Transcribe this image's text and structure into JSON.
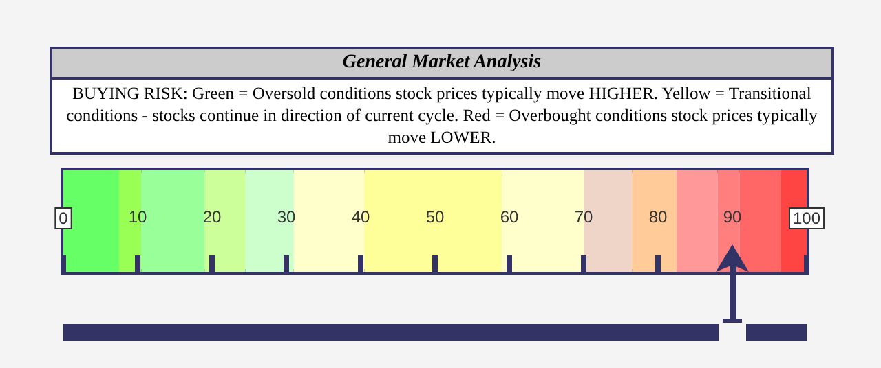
{
  "chart_data": {
    "type": "bar",
    "orientation": "horizontal",
    "stacked": true,
    "title": "General Market Analysis",
    "subtitle": "BUYING RISK: Green = Oversold conditions stock prices typically move HIGHER. Yellow = Transitional conditions - stocks continue in direction of current cycle. Red = Overbought conditions stock prices typically move LOWER.",
    "categories": [
      null
    ],
    "series": [
      {
        "color": "#66ff66",
        "values": [
          7.5
        ]
      },
      {
        "color": "#99ff55",
        "values": [
          3
        ]
      },
      {
        "color": "#99ff99",
        "values": [
          8.5
        ]
      },
      {
        "color": "#ccff99",
        "values": [
          5.5
        ]
      },
      {
        "color": "#ccffcc",
        "values": [
          6.5
        ]
      },
      {
        "color": "#ffffcc",
        "values": [
          9.5
        ]
      },
      {
        "color": "#ffff99",
        "values": [
          18.5
        ]
      },
      {
        "color": "#ffffcc",
        "values": [
          11
        ]
      },
      {
        "color": "#eed5c8",
        "values": [
          6.5
        ]
      },
      {
        "color": "#ffcc99",
        "values": [
          6
        ]
      },
      {
        "color": "#ff9999",
        "values": [
          5.5
        ]
      },
      {
        "color": "#ff7f7f",
        "values": [
          3
        ]
      },
      {
        "color": "#ff6666",
        "values": [
          5.5
        ]
      },
      {
        "color": "#ff4444",
        "values": [
          3.5
        ]
      }
    ],
    "xlim": [
      0,
      100
    ],
    "xticks": [
      0,
      10,
      20,
      30,
      40,
      50,
      60,
      70,
      80,
      90,
      100
    ],
    "tick_labels": "x",
    "grid": false,
    "ref_lines": [
      {
        "axis": "x",
        "value": 90,
        "color": "#333366"
      }
    ]
  }
}
